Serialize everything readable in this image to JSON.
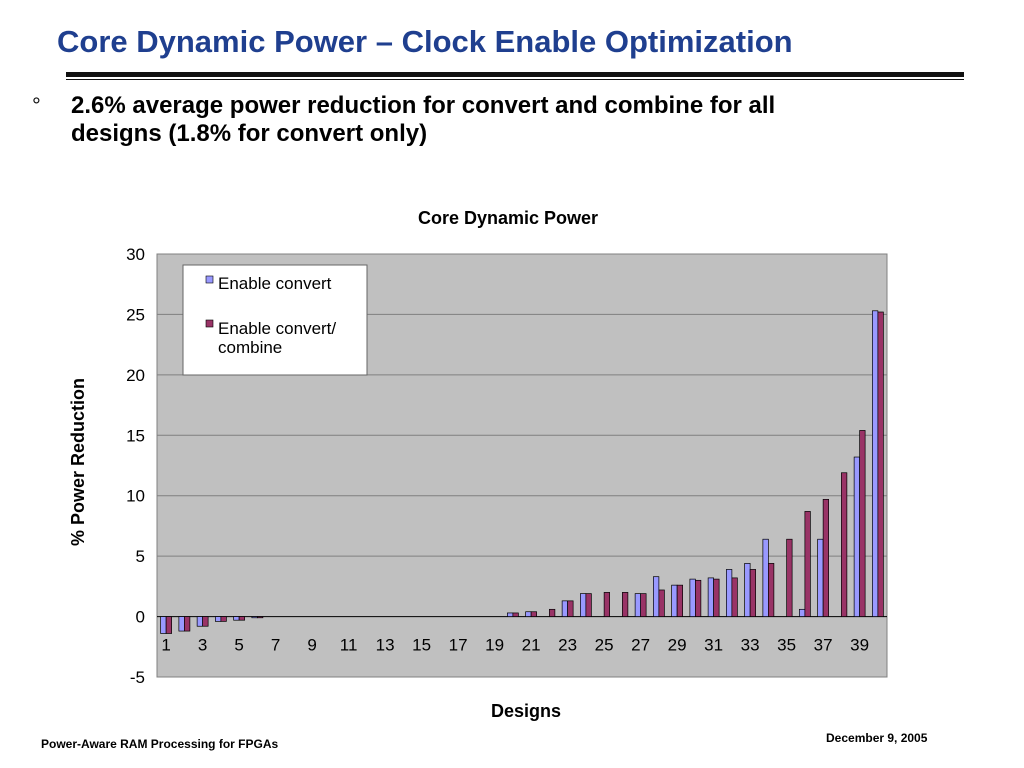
{
  "slide": {
    "title": "Core Dynamic Power – Clock Enable Optimization",
    "bullet_mark": "°",
    "bullet_line1": "2.6% average power reduction for convert and combine for all",
    "bullet_line2": "designs  (1.8% for convert only)",
    "footer_left": "Power-Aware RAM Processing for FPGAs",
    "footer_right": "December 9, 2005"
  },
  "chart_data": {
    "type": "bar",
    "title": "Core Dynamic Power",
    "xlabel": "Designs",
    "ylabel": "% Power Reduction",
    "ylim": [
      -5,
      30
    ],
    "yticks": [
      -5,
      0,
      5,
      10,
      15,
      20,
      25,
      30
    ],
    "grid": true,
    "legend_position": "top-left inside plot",
    "categories": [
      1,
      2,
      3,
      4,
      5,
      6,
      7,
      8,
      9,
      10,
      11,
      12,
      13,
      14,
      15,
      16,
      17,
      18,
      19,
      20,
      21,
      22,
      23,
      24,
      25,
      26,
      27,
      28,
      29,
      30,
      31,
      32,
      33,
      34,
      35,
      36,
      37,
      38,
      39,
      40
    ],
    "tick_labels": [
      "1",
      "3",
      "5",
      "7",
      "9",
      "11",
      "13",
      "15",
      "17",
      "19",
      "21",
      "23",
      "25",
      "27",
      "29",
      "31",
      "33",
      "35",
      "37",
      "39"
    ],
    "series": [
      {
        "name": "Enable convert",
        "color": "#9999ff",
        "values": [
          -1.4,
          -1.2,
          -0.8,
          -0.4,
          -0.3,
          -0.1,
          0,
          0,
          0,
          0,
          0,
          0,
          0,
          0,
          0,
          0,
          0,
          0,
          0,
          0.3,
          0.4,
          0,
          1.3,
          1.9,
          0,
          0,
          1.9,
          3.3,
          2.6,
          3.1,
          3.2,
          3.9,
          4.4,
          6.4,
          0,
          0.6,
          6.4,
          0,
          13.2,
          25.3
        ]
      },
      {
        "name": "Enable convert/ combine",
        "label_lines": [
          "Enable convert/",
          "combine"
        ],
        "color": "#993366",
        "values": [
          -1.4,
          -1.2,
          -0.8,
          -0.4,
          -0.3,
          -0.1,
          0,
          0,
          0,
          0,
          0,
          0,
          0,
          0,
          0,
          0,
          0,
          0,
          0,
          0.3,
          0.4,
          0.6,
          1.3,
          1.9,
          2.0,
          2.0,
          1.9,
          2.2,
          2.6,
          3.0,
          3.1,
          3.2,
          3.9,
          4.4,
          6.4,
          8.7,
          9.7,
          11.9,
          15.4,
          25.2
        ]
      }
    ],
    "plot_background": "#c0c0c0"
  }
}
